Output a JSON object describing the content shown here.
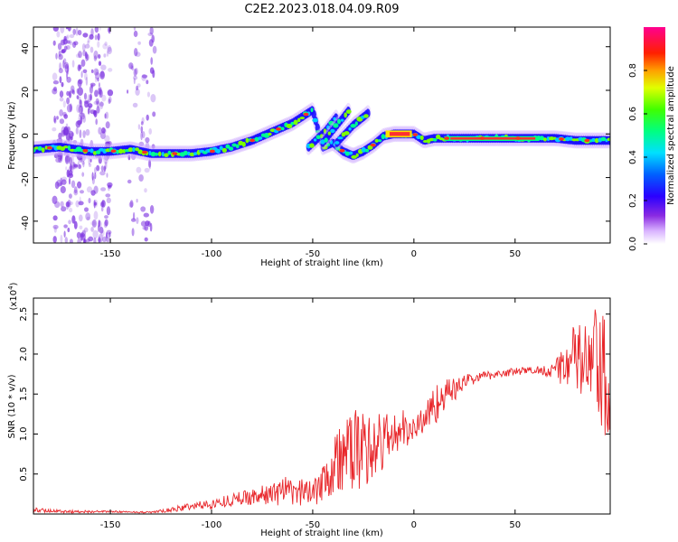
{
  "title": "C2E2.2023.018.04.09.R09",
  "colors": {
    "snr_line": "#e8262a",
    "spectrum_track": "#ff3030",
    "noise": "#7a2fe0"
  },
  "chart_data": [
    {
      "type": "heatmap",
      "name": "spectrogram",
      "xlabel": "Height of straight line (km)",
      "ylabel": "Frequency (Hz)",
      "xlim": [
        -188,
        97
      ],
      "ylim": [
        -50,
        49
      ],
      "xticks": [
        -150,
        -100,
        -50,
        0,
        50
      ],
      "yticks": [
        -40,
        -20,
        0,
        20,
        40
      ],
      "colorbar": {
        "label": "Normalized spectral amplitude",
        "range": [
          0,
          1
        ],
        "ticks": [
          "0.0",
          "0.2",
          "0.4",
          "0.6",
          "0.8"
        ],
        "colormap": "rainbow (white-purple-blue-cyan-green-yellow-red-magenta)"
      },
      "dominant_track": {
        "x": [
          -188,
          -175,
          -160,
          -150,
          -140,
          -130,
          -120,
          -110,
          -100,
          -90,
          -80,
          -70,
          -60,
          -55,
          -50,
          -45,
          -40,
          -35,
          -30,
          -25,
          -20,
          -15,
          -10,
          -5,
          0,
          5,
          10,
          20,
          30,
          40,
          50,
          60,
          70,
          80,
          90,
          97
        ],
        "y": [
          -7,
          -6,
          -8,
          -8,
          -7,
          -9,
          -9,
          -9,
          -8,
          -6,
          -3,
          1,
          5,
          8,
          11,
          -6,
          -4,
          -8,
          -10,
          -8,
          -5,
          -1,
          0,
          0,
          0,
          -3,
          -2,
          -2,
          -2,
          -2,
          -2,
          -2,
          -2,
          -3,
          -3,
          -3
        ]
      },
      "branches": [
        {
          "x": [
            -52,
            -44,
            -38
          ],
          "y": [
            -6,
            1,
            8
          ]
        },
        {
          "x": [
            -45,
            -38,
            -32
          ],
          "y": [
            -4,
            4,
            11
          ]
        },
        {
          "x": [
            -38,
            -30,
            -22
          ],
          "y": [
            -4,
            4,
            10
          ]
        }
      ]
    },
    {
      "type": "line",
      "name": "snr",
      "xlabel": "Height of straight line (km)",
      "ylabel": "SNR (10 * v/v)",
      "y_scale_label": "(x10",
      "y_scale_exp": "4",
      "ylim": [
        0,
        2.7
      ],
      "xlim": [
        -188,
        97
      ],
      "xticks": [
        -150,
        -100,
        -50,
        0,
        50
      ],
      "yticks": [
        "0.5",
        "1.0",
        "1.5",
        "2.0",
        "2.5"
      ],
      "ytick_values": [
        0.5,
        1.0,
        1.5,
        2.0,
        2.5
      ],
      "series": [
        {
          "x": [
            -188,
            -170,
            -150,
            -130,
            -120,
            -110,
            -100,
            -90,
            -80,
            -70,
            -65,
            -60,
            -50,
            -45,
            -40,
            -35,
            -30,
            -25,
            -20,
            -15,
            -10,
            -5,
            0,
            5,
            10,
            15,
            20,
            25,
            30,
            40,
            50,
            60,
            70,
            75,
            80,
            85,
            90,
            93,
            97
          ],
          "y": [
            0.05,
            0.03,
            0.03,
            0.02,
            0.05,
            0.1,
            0.12,
            0.18,
            0.22,
            0.25,
            0.3,
            0.25,
            0.3,
            0.45,
            0.6,
            0.7,
            0.8,
            0.8,
            0.85,
            0.9,
            1.0,
            1.05,
            1.05,
            1.2,
            1.35,
            1.5,
            1.55,
            1.65,
            1.7,
            1.75,
            1.78,
            1.8,
            1.8,
            1.9,
            1.95,
            1.85,
            1.9,
            1.6,
            1.6
          ],
          "noise_amplitude": [
            0.03,
            0.02,
            0.01,
            0.01,
            0.03,
            0.05,
            0.06,
            0.08,
            0.1,
            0.14,
            0.2,
            0.15,
            0.2,
            0.3,
            0.45,
            0.5,
            0.5,
            0.5,
            0.45,
            0.4,
            0.35,
            0.25,
            0.15,
            0.2,
            0.25,
            0.2,
            0.15,
            0.1,
            0.07,
            0.05,
            0.05,
            0.05,
            0.1,
            0.35,
            0.45,
            0.6,
            0.7,
            0.9,
            0.9
          ]
        }
      ]
    }
  ]
}
